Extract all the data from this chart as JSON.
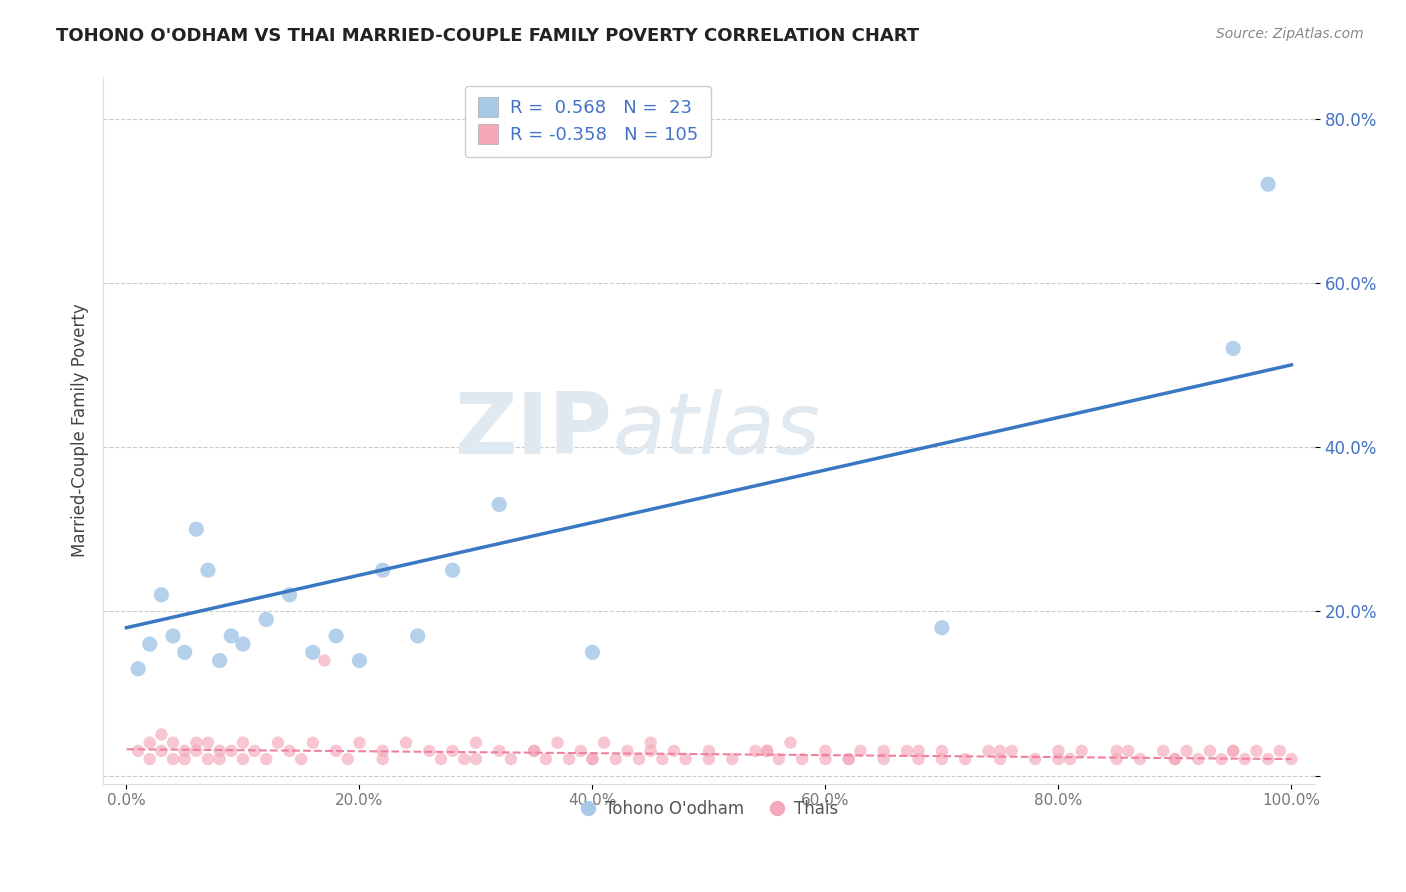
{
  "title": "TOHONO O'ODHAM VS THAI MARRIED-COUPLE FAMILY POVERTY CORRELATION CHART",
  "source": "Source: ZipAtlas.com",
  "ylabel": "Married-Couple Family Poverty",
  "xlim": [
    -2,
    102
  ],
  "ylim": [
    -1,
    85
  ],
  "yticks": [
    0,
    20,
    40,
    60,
    80
  ],
  "ytick_labels": [
    "",
    "20.0%",
    "40.0%",
    "60.0%",
    "80.0%"
  ],
  "xticks": [
    0,
    20,
    40,
    60,
    80,
    100
  ],
  "xtick_labels": [
    "0.0%",
    "20.0%",
    "40.0%",
    "60.0%",
    "80.0%",
    "100.0%"
  ],
  "blue_r": 0.568,
  "blue_n": 23,
  "pink_r": -0.358,
  "pink_n": 105,
  "blue_color": "#A8C8E8",
  "pink_color": "#F4A8B8",
  "blue_line_color": "#3B78C3",
  "pink_line_color": "#F080A0",
  "background_color": "#FFFFFF",
  "watermark_zip": "ZIP",
  "watermark_atlas": "atlas",
  "legend_text_color": "#4472C4",
  "tohono_label": "Tohono O'odham",
  "thai_label": "Thais",
  "blue_points_x": [
    1,
    2,
    3,
    4,
    5,
    6,
    7,
    8,
    9,
    10,
    12,
    14,
    16,
    18,
    20,
    22,
    25,
    28,
    32,
    40,
    70,
    95,
    98
  ],
  "blue_points_y": [
    13,
    16,
    22,
    17,
    15,
    30,
    25,
    14,
    17,
    16,
    19,
    22,
    15,
    17,
    14,
    25,
    17,
    25,
    33,
    15,
    18,
    52,
    72
  ],
  "pink_points_x": [
    1,
    2,
    2,
    3,
    3,
    4,
    4,
    5,
    5,
    6,
    6,
    7,
    7,
    8,
    8,
    9,
    10,
    10,
    11,
    12,
    13,
    14,
    15,
    16,
    17,
    18,
    19,
    20,
    22,
    22,
    24,
    26,
    27,
    28,
    29,
    30,
    32,
    33,
    35,
    36,
    37,
    38,
    39,
    40,
    41,
    42,
    43,
    44,
    45,
    46,
    47,
    48,
    50,
    52,
    54,
    56,
    57,
    58,
    60,
    62,
    63,
    65,
    67,
    68,
    70,
    72,
    74,
    75,
    76,
    78,
    80,
    81,
    82,
    85,
    86,
    87,
    89,
    90,
    91,
    92,
    93,
    94,
    95,
    96,
    97,
    98,
    99,
    100,
    55,
    60,
    65,
    70,
    75,
    80,
    85,
    90,
    95,
    30,
    35,
    40,
    45,
    50,
    55,
    62,
    68
  ],
  "pink_points_y": [
    3,
    2,
    4,
    3,
    5,
    2,
    4,
    3,
    2,
    4,
    3,
    2,
    4,
    3,
    2,
    3,
    4,
    2,
    3,
    2,
    4,
    3,
    2,
    4,
    14,
    3,
    2,
    4,
    3,
    2,
    4,
    3,
    2,
    3,
    2,
    4,
    3,
    2,
    3,
    2,
    4,
    2,
    3,
    2,
    4,
    2,
    3,
    2,
    4,
    2,
    3,
    2,
    3,
    2,
    3,
    2,
    4,
    2,
    3,
    2,
    3,
    2,
    3,
    2,
    3,
    2,
    3,
    2,
    3,
    2,
    3,
    2,
    3,
    2,
    3,
    2,
    3,
    2,
    3,
    2,
    3,
    2,
    3,
    2,
    3,
    2,
    3,
    2,
    3,
    2,
    3,
    2,
    3,
    2,
    3,
    2,
    3,
    2,
    3,
    2,
    3,
    2,
    3,
    2,
    3
  ]
}
